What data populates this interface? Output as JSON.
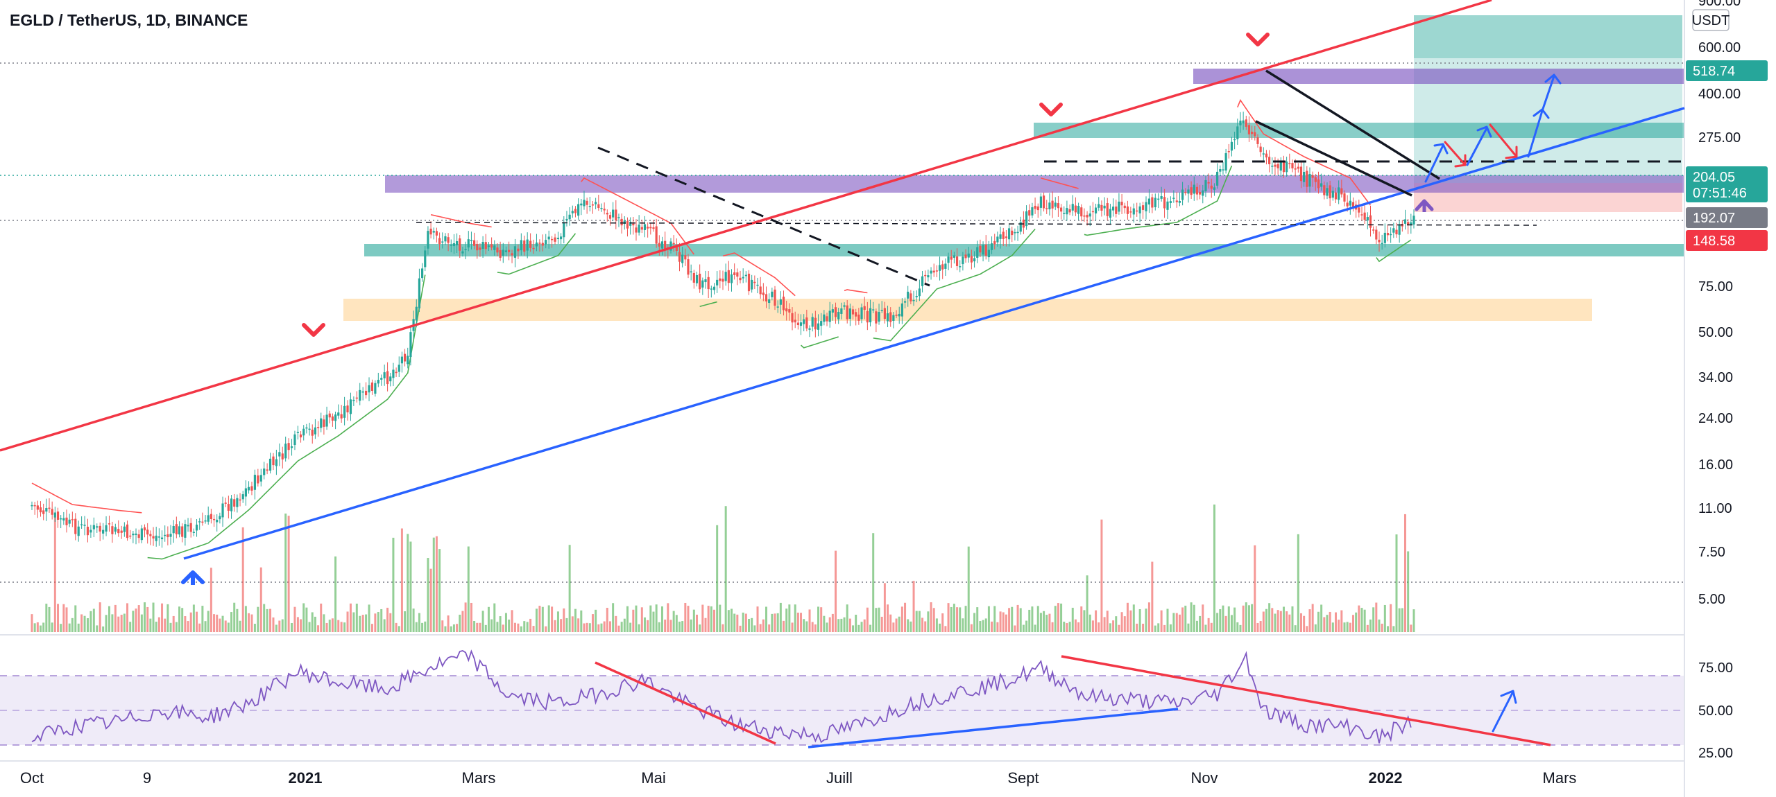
{
  "header": {
    "title": "EGLD / TetherUS, 1D, BINANCE"
  },
  "price_axis": {
    "unit": "USDT"
  },
  "colors": {
    "bg": "#ffffff",
    "up": "#26a69a",
    "down": "#ef5350",
    "red_line": "#f23645",
    "blue_line": "#2962ff",
    "purple": "#7e57c2",
    "teal_zone": "#26a69a",
    "orange_zone": "#ffcc80",
    "supertrend_up": "#4caf50",
    "supertrend_down": "#ff5252",
    "rsi_line": "#7e57c2",
    "rsi_band": "#7e57c2",
    "volume_up": "#4caf50",
    "volume_down": "#ef5350"
  },
  "chart_data": [
    {
      "type": "candlestick",
      "title": "EGLD / TetherUS, 1D, BINANCE",
      "y_scale": "log",
      "y_tick_labels": [
        "900.00",
        "600.00",
        "400.00",
        "275.00",
        "192.07",
        "75.00",
        "50.00",
        "34.00",
        "24.00",
        "16.00",
        "11.00",
        "7.50",
        "5.00"
      ],
      "x_tick_labels": [
        "Oct",
        "9",
        "2021",
        "Mars",
        "Mai",
        "Juill",
        "Sept",
        "Nov",
        "2022",
        "Mars"
      ],
      "price_badges": [
        {
          "label": "518.74",
          "kind": "teal"
        },
        {
          "label": "204.05",
          "sublabel": "07:51:46",
          "kind": "last"
        },
        {
          "label": "192.07",
          "kind": "gray"
        },
        {
          "label": "148.58",
          "kind": "red"
        }
      ],
      "x": [
        "2020-10-01",
        "2020-10-15",
        "2020-11-01",
        "2020-11-15",
        "2020-12-01",
        "2020-12-15",
        "2021-01-01",
        "2021-01-15",
        "2021-02-01",
        "2021-02-08",
        "2021-02-15",
        "2021-03-01",
        "2021-03-15",
        "2021-04-01",
        "2021-04-10",
        "2021-04-25",
        "2021-05-10",
        "2021-05-20",
        "2021-06-01",
        "2021-06-15",
        "2021-06-25",
        "2021-07-10",
        "2021-07-25",
        "2021-08-10",
        "2021-08-25",
        "2021-09-05",
        "2021-09-15",
        "2021-10-01",
        "2021-10-15",
        "2021-11-01",
        "2021-11-15",
        "2021-11-23",
        "2021-12-01",
        "2021-12-15",
        "2021-12-31",
        "2022-01-10",
        "2022-01-22"
      ],
      "close": [
        10.0,
        8.0,
        7.5,
        7.2,
        8.5,
        12.0,
        20.0,
        26.0,
        38.0,
        50.0,
        165.0,
        150.0,
        140.0,
        170.0,
        240.0,
        190.0,
        150.0,
        100.0,
        110.0,
        85.0,
        65.0,
        75.0,
        70.0,
        120.0,
        140.0,
        170.0,
        240.0,
        210.0,
        225.0,
        240.0,
        300.0,
        540.0,
        380.0,
        300.0,
        240.0,
        160.0,
        204.05
      ]
    },
    {
      "type": "line",
      "title": "RSI",
      "y_tick_labels": [
        "75.00",
        "50.00",
        "25.00"
      ],
      "ylim": [
        20,
        95
      ],
      "x": [
        "2020-10-01",
        "2020-10-15",
        "2020-11-01",
        "2020-11-15",
        "2020-12-01",
        "2020-12-15",
        "2021-01-01",
        "2021-01-15",
        "2021-02-01",
        "2021-02-15",
        "2021-03-01",
        "2021-03-15",
        "2021-04-01",
        "2021-04-15",
        "2021-05-01",
        "2021-05-15",
        "2021-06-01",
        "2021-06-15",
        "2021-07-01",
        "2021-07-15",
        "2021-08-01",
        "2021-08-15",
        "2021-09-01",
        "2021-09-15",
        "2021-10-01",
        "2021-10-15",
        "2021-11-01",
        "2021-11-15",
        "2021-11-25",
        "2021-12-01",
        "2021-12-15",
        "2022-01-01",
        "2022-01-10",
        "2022-01-22"
      ],
      "values": [
        30,
        38,
        42,
        50,
        45,
        55,
        78,
        70,
        65,
        80,
        90,
        60,
        55,
        62,
        72,
        55,
        40,
        35,
        32,
        40,
        55,
        62,
        70,
        80,
        60,
        58,
        55,
        62,
        88,
        50,
        40,
        38,
        30,
        43
      ]
    }
  ]
}
